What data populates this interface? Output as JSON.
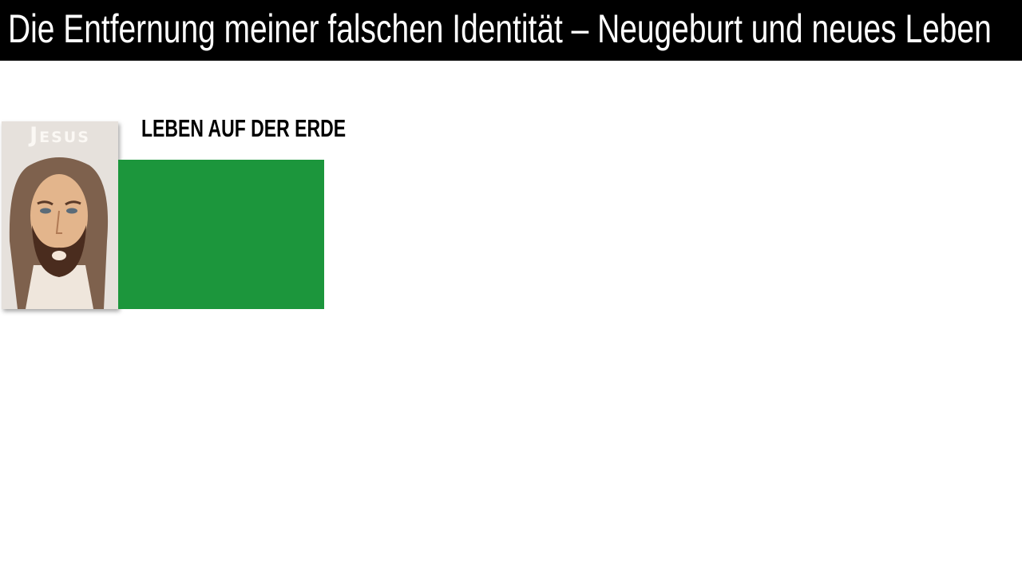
{
  "slide": {
    "title": "Die Entfernung meiner falschen Identität – Neugeburt und neues Leben",
    "heading": "LEBEN AUF DER ERDE",
    "card_label": "Jesus",
    "colors": {
      "title_bar": "#000000",
      "green_box": "#1c963c",
      "card_background": "#e6e1dc"
    }
  }
}
